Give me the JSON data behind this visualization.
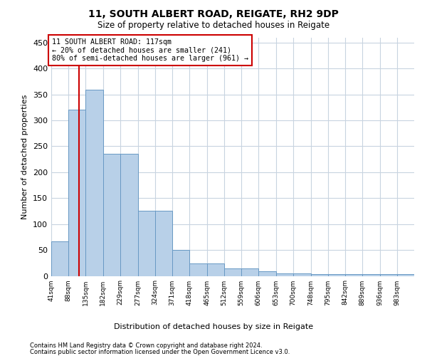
{
  "title1": "11, SOUTH ALBERT ROAD, REIGATE, RH2 9DP",
  "title2": "Size of property relative to detached houses in Reigate",
  "xlabel": "Distribution of detached houses by size in Reigate",
  "ylabel": "Number of detached properties",
  "bar_values": [
    67,
    321,
    359,
    235,
    235,
    126,
    126,
    50,
    24,
    24,
    14,
    14,
    9,
    5,
    5,
    4,
    3,
    3,
    3,
    3,
    3
  ],
  "bin_edges": [
    41,
    88,
    135,
    182,
    229,
    277,
    324,
    371,
    418,
    465,
    512,
    559,
    606,
    653,
    700,
    748,
    795,
    842,
    889,
    936,
    983,
    1030
  ],
  "bar_color": "#b8d0e8",
  "bar_edge_color": "#6899c4",
  "grid_color": "#c8d4e0",
  "property_size": 117,
  "annotation_text": "11 SOUTH ALBERT ROAD: 117sqm\n← 20% of detached houses are smaller (241)\n80% of semi-detached houses are larger (961) →",
  "annotation_box_facecolor": "#ffffff",
  "annotation_box_edgecolor": "#cc0000",
  "vline_color": "#cc0000",
  "ylim": [
    0,
    460
  ],
  "yticks": [
    0,
    50,
    100,
    150,
    200,
    250,
    300,
    350,
    400,
    450
  ],
  "tick_labels": [
    "41sqm",
    "88sqm",
    "135sqm",
    "182sqm",
    "229sqm",
    "277sqm",
    "324sqm",
    "371sqm",
    "418sqm",
    "465sqm",
    "512sqm",
    "559sqm",
    "606sqm",
    "653sqm",
    "700sqm",
    "748sqm",
    "795sqm",
    "842sqm",
    "889sqm",
    "936sqm",
    "983sqm"
  ],
  "footer1": "Contains HM Land Registry data © Crown copyright and database right 2024.",
  "footer2": "Contains public sector information licensed under the Open Government Licence v3.0."
}
